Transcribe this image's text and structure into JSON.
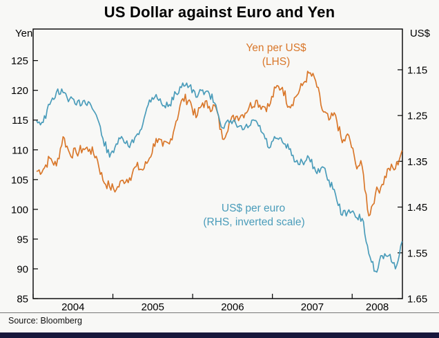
{
  "chart_data": {
    "type": "line",
    "title": "US Dollar against Euro and Yen",
    "source": "Source: Bloomberg",
    "x_range": [
      2004.0,
      2008.63
    ],
    "x_start": 2004.0,
    "x_step": 0.083333,
    "x_year_ticks": [
      2004,
      2005,
      2006,
      2007,
      2008
    ],
    "x_tick_labels": [
      "2004",
      "2005",
      "2006",
      "2007",
      "2008"
    ],
    "left_axis": {
      "unit_label": "Yen",
      "ticks": [
        85,
        90,
        95,
        100,
        105,
        110,
        115,
        120,
        125
      ],
      "range": [
        85,
        130.3
      ],
      "inverted": false
    },
    "right_axis": {
      "unit_label": "US$",
      "ticks": [
        1.15,
        1.25,
        1.35,
        1.45,
        1.55,
        1.65
      ],
      "range": [
        1.061,
        1.65
      ],
      "inverted": true
    },
    "series": [
      {
        "id": "yen",
        "name": "Yen per US$ (LHS)",
        "label_lines": [
          "Yen per US$",
          "(LHS)"
        ],
        "axis": "left",
        "color": "#d9772a",
        "monthly_values": [
          106.4,
          106.7,
          108.6,
          107.3,
          112.2,
          109.4,
          109.5,
          110.2,
          110.1,
          108.9,
          104.9,
          103.8,
          103.3,
          104.9,
          105.3,
          107.2,
          106.6,
          108.6,
          111.9,
          110.6,
          111.0,
          114.8,
          118.6,
          118.4,
          115.4,
          117.9,
          117.3,
          117.1,
          111.8,
          114.6,
          115.6,
          115.9,
          117.2,
          118.3,
          117.3,
          117.3,
          120.4,
          120.5,
          117.3,
          118.9,
          120.8,
          122.9,
          121.6,
          116.7,
          115.0,
          115.8,
          111.2,
          112.4,
          107.7,
          107.2,
          98.9,
          102.6,
          104.2,
          106.9,
          106.8,
          109.9
        ]
      },
      {
        "id": "euro",
        "name": "US$ per euro (RHS, inverted scale)",
        "label_lines": [
          "US$ per euro",
          "(RHS, inverted scale)"
        ],
        "axis": "right",
        "color": "#4a9cba",
        "monthly_values": [
          1.261,
          1.265,
          1.226,
          1.199,
          1.2,
          1.214,
          1.227,
          1.218,
          1.222,
          1.249,
          1.3,
          1.341,
          1.312,
          1.301,
          1.32,
          1.294,
          1.269,
          1.216,
          1.204,
          1.229,
          1.226,
          1.202,
          1.179,
          1.186,
          1.21,
          1.194,
          1.202,
          1.227,
          1.277,
          1.266,
          1.268,
          1.281,
          1.273,
          1.261,
          1.288,
          1.321,
          1.3,
          1.308,
          1.324,
          1.351,
          1.351,
          1.342,
          1.372,
          1.362,
          1.391,
          1.423,
          1.468,
          1.456,
          1.472,
          1.475,
          1.552,
          1.59,
          1.556,
          1.556,
          1.585,
          1.525
        ]
      }
    ],
    "colors": {
      "yen_line": "#d9772a",
      "euro_line": "#4a9cba",
      "footer_bar": "#17173c"
    }
  }
}
